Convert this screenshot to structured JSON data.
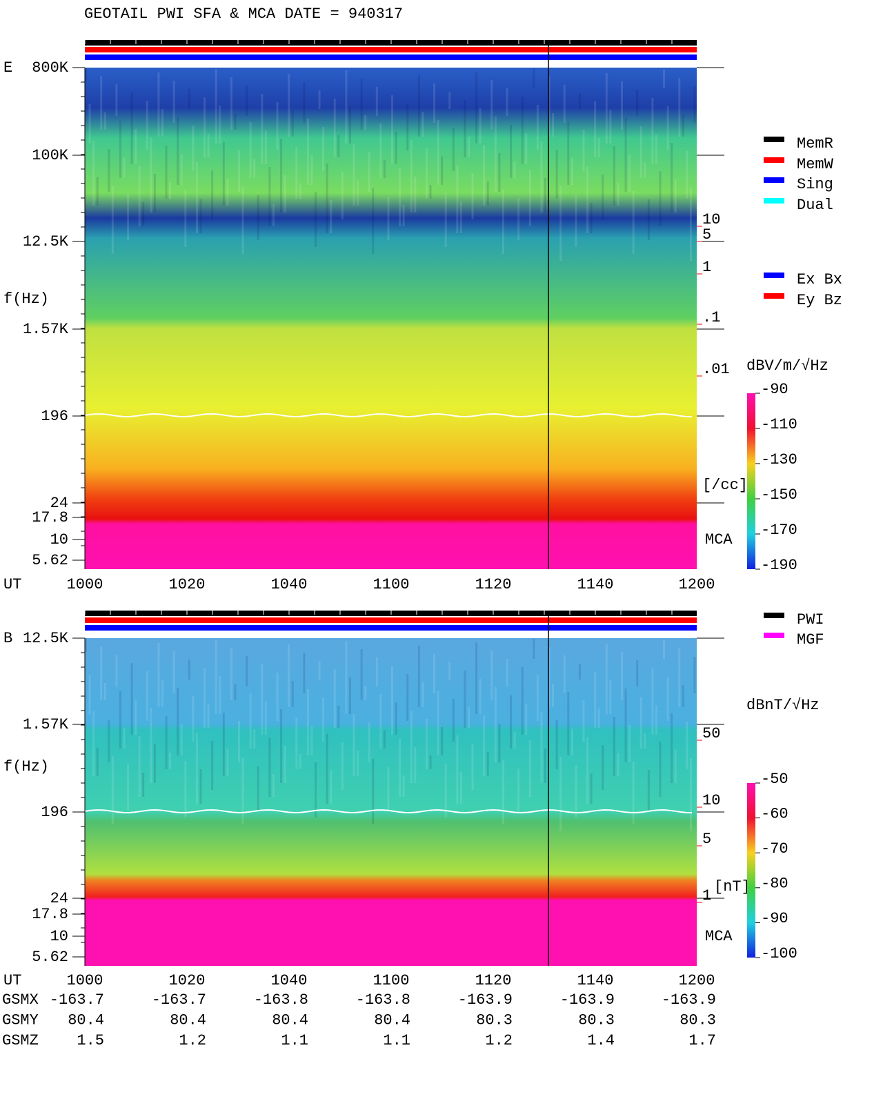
{
  "title": "GEOTAIL  PWI SFA & MCA   DATE = 940317",
  "panels": [
    {
      "label": "E",
      "ylabel": "f(Hz)",
      "xlabel": "UT",
      "yticks": [
        "800K",
        "100K",
        "12.5K",
        "1.57K",
        "196",
        "24",
        "17.8",
        "10",
        "5.62"
      ],
      "xticks": [
        "1000",
        "1020",
        "1040",
        "1100",
        "1120",
        "1140",
        "1200"
      ],
      "right_scale": [
        "10",
        "5",
        "1",
        ".1",
        ".01",
        "[/cc]"
      ],
      "mca_label": "MCA",
      "colorbar": {
        "unit": "dBV/m/√Hz",
        "ticks": [
          "-90",
          "-110",
          "-130",
          "-150",
          "-170",
          "-190"
        ]
      },
      "legend": [
        "MemR",
        "MemW",
        "Sing",
        "Dual",
        "Ex Bx",
        "Ey Bz"
      ]
    },
    {
      "label": "B",
      "ylabel": "f(Hz)",
      "xlabel": "UT",
      "yticks": [
        "12.5K",
        "1.57K",
        "196",
        "24",
        "17.8",
        "10",
        "5.62"
      ],
      "xticks": [
        "1000",
        "1020",
        "1040",
        "1100",
        "1120",
        "1140",
        "1200"
      ],
      "right_scale": [
        "50",
        "10",
        "5",
        "1",
        "[nT]"
      ],
      "mca_label": "MCA",
      "colorbar": {
        "unit": "dBnT/√Hz",
        "ticks": [
          "-50",
          "-60",
          "-70",
          "-80",
          "-90",
          "-100"
        ]
      },
      "legend": [
        "PWI",
        "MGF"
      ]
    }
  ],
  "orbit": [
    {
      "name": "GSMX",
      "values": [
        "-163.7",
        "-163.7",
        "-163.8",
        "-163.8",
        "-163.9",
        "-163.9",
        "-163.9"
      ]
    },
    {
      "name": "GSMY",
      "values": [
        "80.4",
        "80.4",
        "80.4",
        "80.4",
        "80.3",
        "80.3",
        "80.3"
      ]
    },
    {
      "name": "GSMZ",
      "values": [
        "1.5",
        "1.2",
        "1.1",
        "1.1",
        "1.2",
        "1.4",
        "1.7"
      ]
    }
  ]
}
